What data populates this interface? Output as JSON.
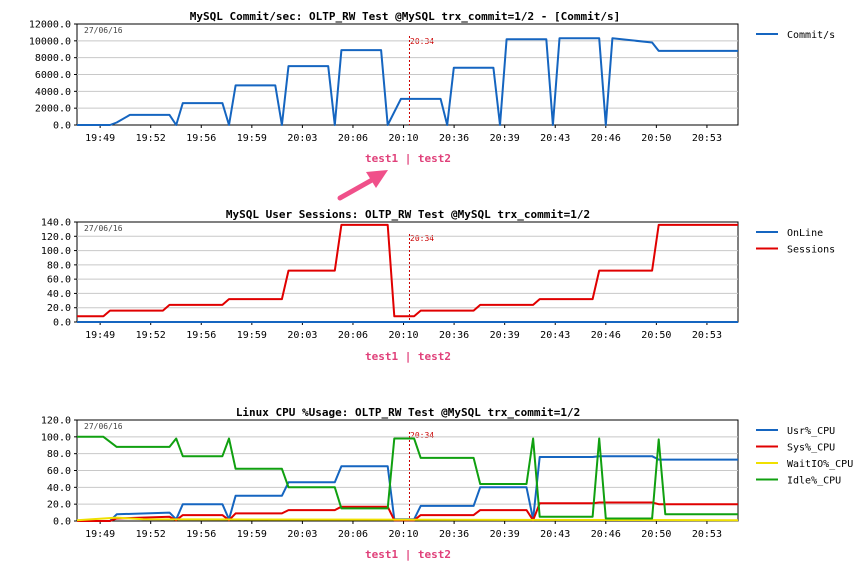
{
  "colors": {
    "blue": "#1565c0",
    "red": "#e00000",
    "yellow": "#f0e000",
    "green": "#10a010",
    "pink": "#e8407a",
    "marker": "#cc0000"
  },
  "arrow": {
    "color": "#f0508a",
    "icon": "arrow-icon"
  },
  "chart_data": [
    {
      "type": "line",
      "title": "MySQL Commit/sec: OLTP_RW Test @MySQL trx_commit=1/2 - [Commit/s]",
      "date_label": "27/06/16",
      "marker_label": "20:34",
      "test_labels": "test1 | test2",
      "xlabel": "",
      "ylabel": "",
      "x_ticks": [
        "19:49",
        "19:52",
        "19:56",
        "19:59",
        "20:03",
        "20:06",
        "20:10",
        "20:36",
        "20:39",
        "20:43",
        "20:46",
        "20:50",
        "20:53"
      ],
      "y_ticks": [
        "0.0",
        "2000.0",
        "4000.0",
        "6000.0",
        "8000.0",
        "10000.0",
        "12000.0"
      ],
      "ylim": [
        0,
        12000
      ],
      "grid": true,
      "legend_position": "right",
      "series": [
        {
          "name": "Commit/s",
          "color": "#1565c0",
          "values": [
            [
              0,
              0
            ],
            [
              5,
              0
            ],
            [
              6,
              300
            ],
            [
              8,
              1200
            ],
            [
              14,
              1200
            ],
            [
              15,
              0
            ],
            [
              16,
              2600
            ],
            [
              22,
              2600
            ],
            [
              23,
              0
            ],
            [
              24,
              4700
            ],
            [
              30,
              4700
            ],
            [
              31,
              0
            ],
            [
              32,
              7000
            ],
            [
              38,
              7000
            ],
            [
              39,
              0
            ],
            [
              40,
              8900
            ],
            [
              46,
              8900
            ],
            [
              47,
              0
            ],
            [
              49,
              3100
            ],
            [
              55,
              3100
            ],
            [
              56,
              0
            ],
            [
              57,
              6800
            ],
            [
              63,
              6800
            ],
            [
              64,
              0
            ],
            [
              65,
              10200
            ],
            [
              71,
              10200
            ],
            [
              72,
              0
            ],
            [
              73,
              10300
            ],
            [
              79,
              10300
            ],
            [
              80,
              0
            ],
            [
              81,
              10300
            ],
            [
              87,
              9800
            ],
            [
              88,
              8800
            ],
            [
              100,
              8800
            ]
          ]
        }
      ]
    },
    {
      "type": "line",
      "title": "MySQL User Sessions: OLTP_RW Test @MySQL trx_commit=1/2",
      "date_label": "27/06/16",
      "marker_label": "20:34",
      "test_labels": "test1 | test2",
      "xlabel": "",
      "ylabel": "",
      "x_ticks": [
        "19:49",
        "19:52",
        "19:56",
        "19:59",
        "20:03",
        "20:06",
        "20:10",
        "20:36",
        "20:39",
        "20:43",
        "20:46",
        "20:50",
        "20:53"
      ],
      "y_ticks": [
        "0.0",
        "20.0",
        "40.0",
        "60.0",
        "80.0",
        "100.0",
        "120.0",
        "140.0"
      ],
      "ylim": [
        0,
        140
      ],
      "grid": true,
      "legend_position": "right",
      "series": [
        {
          "name": "OnLine",
          "color": "#1565c0",
          "values": [
            [
              0,
              0
            ],
            [
              100,
              0
            ]
          ]
        },
        {
          "name": "Sessions",
          "color": "#e00000",
          "values": [
            [
              0,
              8
            ],
            [
              4,
              8
            ],
            [
              5,
              16
            ],
            [
              13,
              16
            ],
            [
              14,
              24
            ],
            [
              22,
              24
            ],
            [
              23,
              32
            ],
            [
              31,
              32
            ],
            [
              32,
              72
            ],
            [
              39,
              72
            ],
            [
              40,
              136
            ],
            [
              47,
              136
            ],
            [
              48,
              8
            ],
            [
              51,
              8
            ],
            [
              52,
              16
            ],
            [
              60,
              16
            ],
            [
              61,
              24
            ],
            [
              69,
              24
            ],
            [
              70,
              32
            ],
            [
              78,
              32
            ],
            [
              79,
              72
            ],
            [
              87,
              72
            ],
            [
              88,
              136
            ],
            [
              100,
              136
            ]
          ]
        }
      ]
    },
    {
      "type": "line",
      "title": "Linux CPU %Usage: OLTP_RW Test @MySQL trx_commit=1/2",
      "date_label": "27/06/16",
      "marker_label": "20:34",
      "test_labels": "test1 | test2",
      "xlabel": "",
      "ylabel": "",
      "x_ticks": [
        "19:49",
        "19:52",
        "19:56",
        "19:59",
        "20:03",
        "20:06",
        "20:10",
        "20:36",
        "20:39",
        "20:43",
        "20:46",
        "20:50",
        "20:53"
      ],
      "y_ticks": [
        "0.0",
        "20.0",
        "40.0",
        "60.0",
        "80.0",
        "100.0",
        "120.0"
      ],
      "ylim": [
        0,
        120
      ],
      "grid": true,
      "legend_position": "right",
      "series": [
        {
          "name": "Usr%_CPU",
          "color": "#1565c0",
          "values": [
            [
              0,
              0
            ],
            [
              5,
              0
            ],
            [
              6,
              8
            ],
            [
              14,
              10
            ],
            [
              15,
              2
            ],
            [
              16,
              20
            ],
            [
              22,
              20
            ],
            [
              23,
              2
            ],
            [
              24,
              30
            ],
            [
              31,
              30
            ],
            [
              32,
              46
            ],
            [
              39,
              46
            ],
            [
              40,
              65
            ],
            [
              47,
              65
            ],
            [
              48,
              2
            ],
            [
              51,
              2
            ],
            [
              52,
              18
            ],
            [
              60,
              18
            ],
            [
              61,
              40
            ],
            [
              68,
              40
            ],
            [
              69,
              2
            ],
            [
              70,
              76
            ],
            [
              78,
              76
            ],
            [
              79,
              77
            ],
            [
              87,
              77
            ],
            [
              88,
              73
            ],
            [
              100,
              73
            ]
          ]
        },
        {
          "name": "Sys%_CPU",
          "color": "#e00000",
          "values": [
            [
              0,
              0
            ],
            [
              5,
              0
            ],
            [
              6,
              3
            ],
            [
              14,
              5
            ],
            [
              15,
              1
            ],
            [
              16,
              7
            ],
            [
              22,
              7
            ],
            [
              23,
              1
            ],
            [
              24,
              9
            ],
            [
              31,
              9
            ],
            [
              32,
              13
            ],
            [
              39,
              13
            ],
            [
              40,
              17
            ],
            [
              47,
              17
            ],
            [
              48,
              1
            ],
            [
              51,
              1
            ],
            [
              52,
              7
            ],
            [
              60,
              7
            ],
            [
              61,
              13
            ],
            [
              68,
              13
            ],
            [
              69,
              1
            ],
            [
              70,
              21
            ],
            [
              78,
              21
            ],
            [
              79,
              22
            ],
            [
              87,
              22
            ],
            [
              88,
              20
            ],
            [
              100,
              20
            ]
          ]
        },
        {
          "name": "WaitIO%_CPU",
          "color": "#f0e000",
          "values": [
            [
              0,
              1
            ],
            [
              6,
              4
            ],
            [
              10,
              2
            ],
            [
              100,
              1
            ]
          ]
        },
        {
          "name": "Idle%_CPU",
          "color": "#10a010",
          "values": [
            [
              0,
              100
            ],
            [
              4,
              100
            ],
            [
              6,
              88
            ],
            [
              14,
              88
            ],
            [
              15,
              98
            ],
            [
              16,
              77
            ],
            [
              22,
              77
            ],
            [
              23,
              98
            ],
            [
              24,
              62
            ],
            [
              31,
              62
            ],
            [
              32,
              40
            ],
            [
              39,
              40
            ],
            [
              40,
              15
            ],
            [
              47,
              15
            ],
            [
              48,
              98
            ],
            [
              51,
              98
            ],
            [
              52,
              75
            ],
            [
              60,
              75
            ],
            [
              61,
              44
            ],
            [
              68,
              44
            ],
            [
              69,
              98
            ],
            [
              70,
              5
            ],
            [
              78,
              5
            ],
            [
              79,
              98
            ],
            [
              80,
              3
            ],
            [
              87,
              3
            ],
            [
              88,
              97
            ],
            [
              89,
              8
            ],
            [
              100,
              8
            ]
          ]
        }
      ]
    }
  ]
}
